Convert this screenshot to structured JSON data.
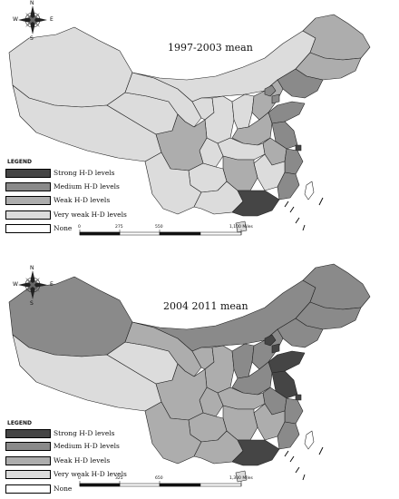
{
  "legend": {
    "heading": "LEGEND",
    "items": [
      {
        "key": "strong",
        "label": "Strong H-D levels",
        "color": "#454545"
      },
      {
        "key": "medium",
        "label": "Medium H-D levels",
        "color": "#8a8a8a"
      },
      {
        "key": "weak",
        "label": "Weak H-D levels",
        "color": "#adadad"
      },
      {
        "key": "very_weak",
        "label": "Very weak H-D levels",
        "color": "#dcdcdc"
      },
      {
        "key": "none",
        "label": "None",
        "color": "#ffffff"
      }
    ]
  },
  "compass": {
    "n": "N",
    "s": "S",
    "e": "E",
    "w": "W"
  },
  "maps": [
    {
      "title": "1997-2003 mean",
      "scale_labels": [
        "0",
        "275",
        "550",
        "1,100 Miles"
      ],
      "regions": {
        "xinjiang": "very_weak",
        "tibet": "very_weak",
        "qinghai": "very_weak",
        "gansu": "very_weak",
        "inner_mongolia": "very_weak",
        "ningxia": "very_weak",
        "shaanxi": "very_weak",
        "sichuan": "weak",
        "chongqing": "very_weak",
        "yunnan": "very_weak",
        "guizhou": "very_weak",
        "guangxi": "very_weak",
        "shanxi": "very_weak",
        "henan": "weak",
        "hubei": "very_weak",
        "hunan": "weak",
        "jiangxi": "very_weak",
        "anhui": "weak",
        "hebei": "weak",
        "beijing": "medium",
        "tianjin": "medium",
        "shandong": "medium",
        "jiangsu": "medium",
        "shanghai": "strong",
        "zhejiang": "medium",
        "fujian": "medium",
        "guangdong": "strong",
        "hainan": "very_weak",
        "liaoning": "medium",
        "jilin": "weak",
        "heilongjiang": "weak",
        "taiwan": "none"
      }
    },
    {
      "title": "2004 2011 mean",
      "scale_labels": [
        "0",
        "325",
        "650",
        "1,300 Miles"
      ],
      "regions": {
        "xinjiang": "medium",
        "tibet": "very_weak",
        "qinghai": "very_weak",
        "gansu": "weak",
        "inner_mongolia": "medium",
        "ningxia": "weak",
        "shaanxi": "weak",
        "sichuan": "weak",
        "chongqing": "weak",
        "yunnan": "weak",
        "guizhou": "weak",
        "guangxi": "weak",
        "shanxi": "medium",
        "henan": "medium",
        "hubei": "weak",
        "hunan": "weak",
        "jiangxi": "weak",
        "anhui": "medium",
        "hebei": "medium",
        "beijing": "strong",
        "tianjin": "strong",
        "shandong": "strong",
        "jiangsu": "strong",
        "shanghai": "strong",
        "zhejiang": "medium",
        "fujian": "medium",
        "guangdong": "strong",
        "hainan": "very_weak",
        "liaoning": "medium",
        "jilin": "medium",
        "heilongjiang": "medium",
        "taiwan": "none"
      }
    }
  ]
}
